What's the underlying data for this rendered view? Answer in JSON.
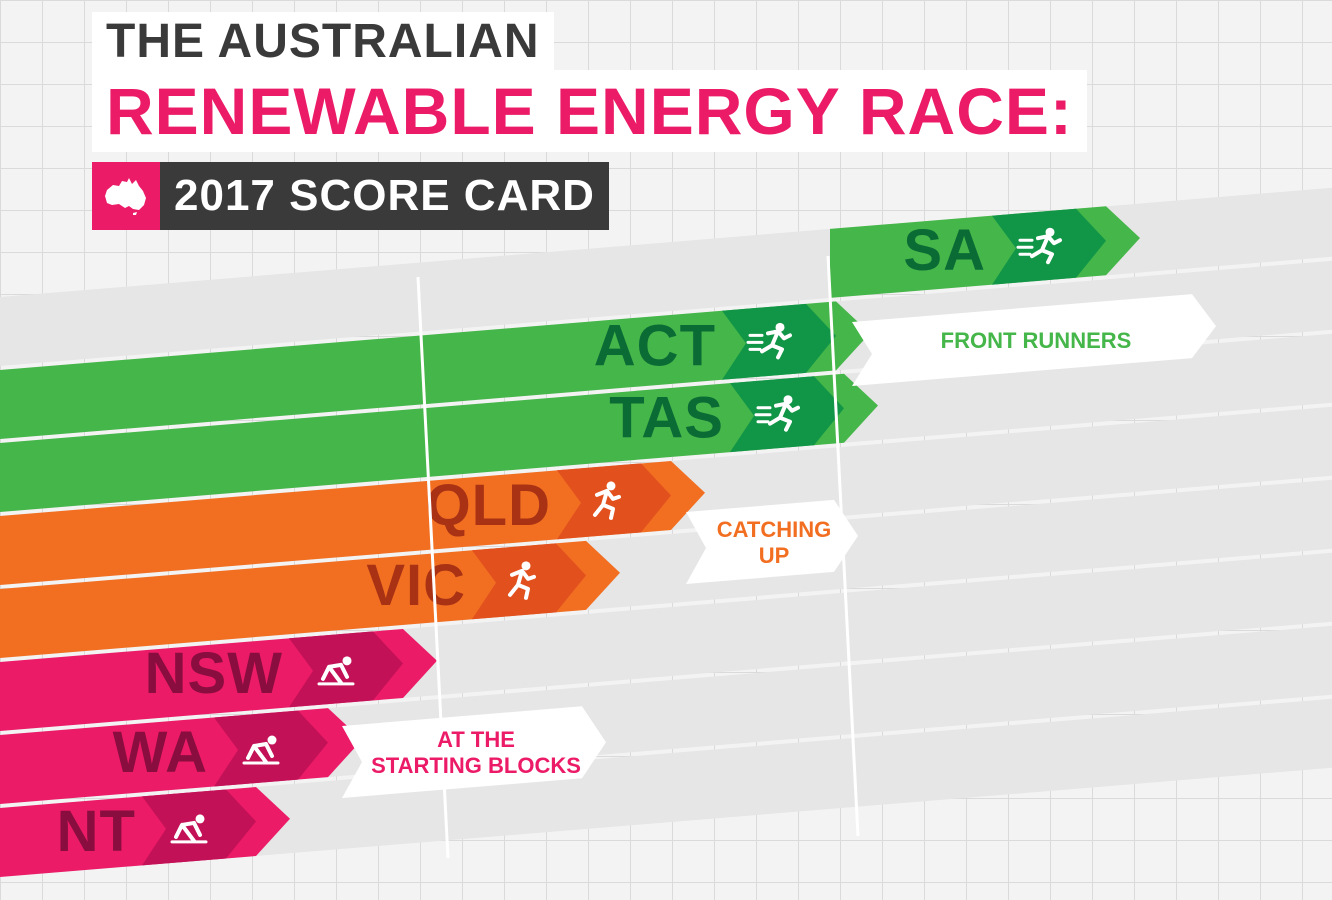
{
  "header": {
    "title_line1": "THE AUSTRALIAN",
    "title_line2": "RENEWABLE ENERGY RACE:",
    "subtitle": "2017 SCORE CARD",
    "map_icon": "australia-map-icon"
  },
  "colors": {
    "green": "#45b649",
    "green_dark": "#119647",
    "green_text": "#0b6b35",
    "orange": "#f26f22",
    "orange_dark": "#e2501e",
    "orange_text": "#a83213",
    "pink": "#ec1b67",
    "pink_dark": "#c31157",
    "pink_text": "#8a0d3f",
    "track": "#e6e6e6",
    "banner_bg": "#ffffff"
  },
  "rows": [
    {
      "id": "sa",
      "label": "SA",
      "group": "front",
      "icon": "sprinter-icon"
    },
    {
      "id": "act",
      "label": "ACT",
      "group": "front",
      "icon": "sprinter-icon"
    },
    {
      "id": "tas",
      "label": "TAS",
      "group": "front",
      "icon": "sprinter-icon"
    },
    {
      "id": "qld",
      "label": "QLD",
      "group": "catch",
      "icon": "runner-icon"
    },
    {
      "id": "vic",
      "label": "VIC",
      "group": "catch",
      "icon": "runner-icon"
    },
    {
      "id": "nsw",
      "label": "NSW",
      "group": "start",
      "icon": "crouch-start-icon"
    },
    {
      "id": "wa",
      "label": "WA",
      "group": "start",
      "icon": "crouch-start-icon"
    },
    {
      "id": "nt",
      "label": "NT",
      "group": "start",
      "icon": "crouch-start-icon"
    }
  ],
  "banners": {
    "front": {
      "lines": [
        "FRONT RUNNERS"
      ]
    },
    "catch": {
      "lines": [
        "CATCHING",
        "UP"
      ]
    },
    "start": {
      "lines": [
        "AT THE",
        "STARTING BLOCKS"
      ]
    }
  }
}
